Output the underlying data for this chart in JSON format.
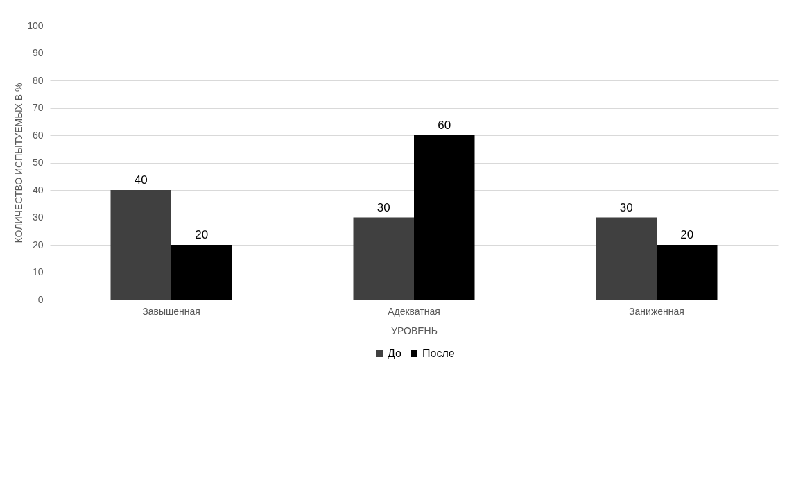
{
  "chart_data": {
    "type": "bar",
    "xlabel": "УРОВЕНЬ",
    "ylabel": "КОЛИЧЕСТВО ИСПЫТУЕМЫХ В %",
    "categories": [
      "Завышенная",
      "Адекватная",
      "Заниженная"
    ],
    "series": [
      {
        "name": "До",
        "color": "#404040",
        "values": [
          40,
          30,
          30
        ]
      },
      {
        "name": "После",
        "color": "#000000",
        "values": [
          20,
          60,
          20
        ]
      }
    ],
    "ylim": [
      0,
      100
    ],
    "yticks": [
      0,
      10,
      20,
      30,
      40,
      50,
      60,
      70,
      80,
      90,
      100
    ],
    "grid": "y",
    "legend": "bottom",
    "data_labels": true
  }
}
